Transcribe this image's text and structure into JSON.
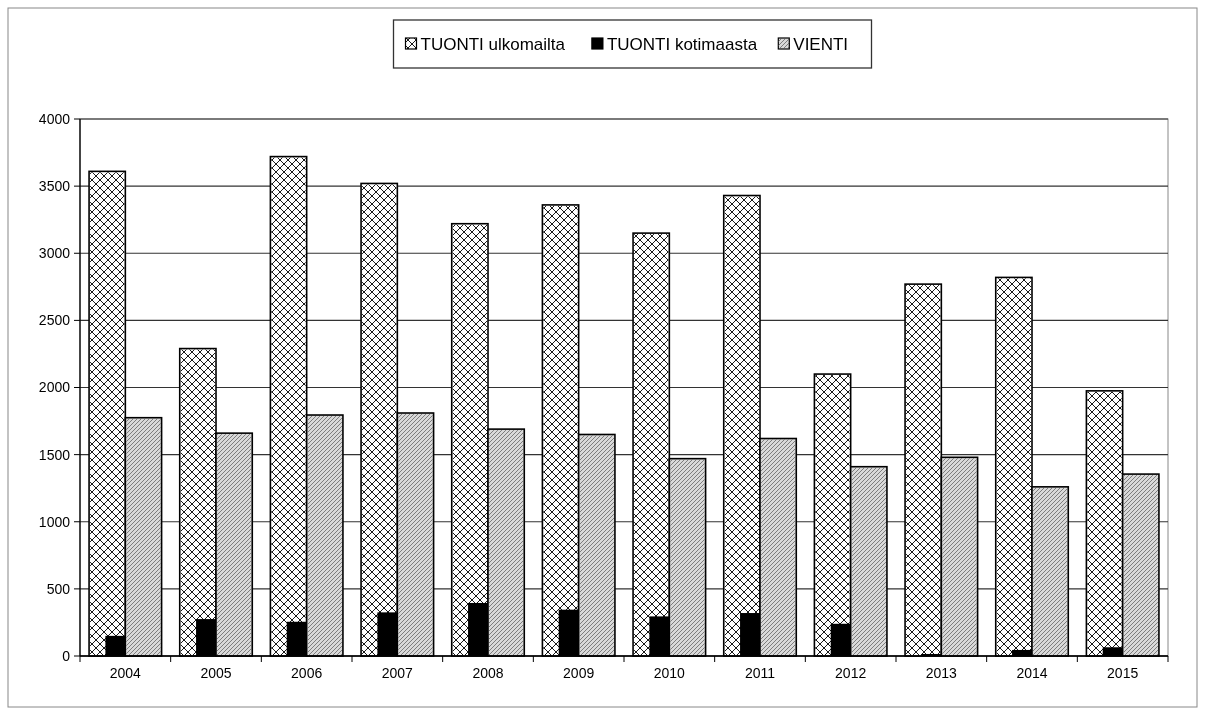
{
  "chart_data": {
    "type": "bar",
    "categories": [
      "2004",
      "2005",
      "2006",
      "2007",
      "2008",
      "2009",
      "2010",
      "2011",
      "2012",
      "2013",
      "2014",
      "2015"
    ],
    "series": [
      {
        "name": "TUONTI ulkomailta",
        "color": "#ffffff",
        "values": [
          3610,
          2290,
          3720,
          3520,
          3220,
          3360,
          3150,
          3430,
          2100,
          2770,
          2820,
          1975
        ]
      },
      {
        "name": "TUONTI kotimaasta",
        "color": "#000000",
        "values": [
          150,
          275,
          255,
          325,
          395,
          345,
          295,
          320,
          240,
          15,
          45,
          65
        ]
      },
      {
        "name": "VIENTI",
        "color": "#d9d9d9",
        "values": [
          1775,
          1660,
          1795,
          1810,
          1690,
          1650,
          1470,
          1620,
          1410,
          1480,
          1260,
          1355
        ]
      }
    ],
    "ylim": [
      0,
      4000
    ],
    "yticks": [
      0,
      500,
      1000,
      1500,
      2000,
      2500,
      3000,
      3500,
      4000
    ],
    "grid": "y",
    "legend": "top"
  }
}
